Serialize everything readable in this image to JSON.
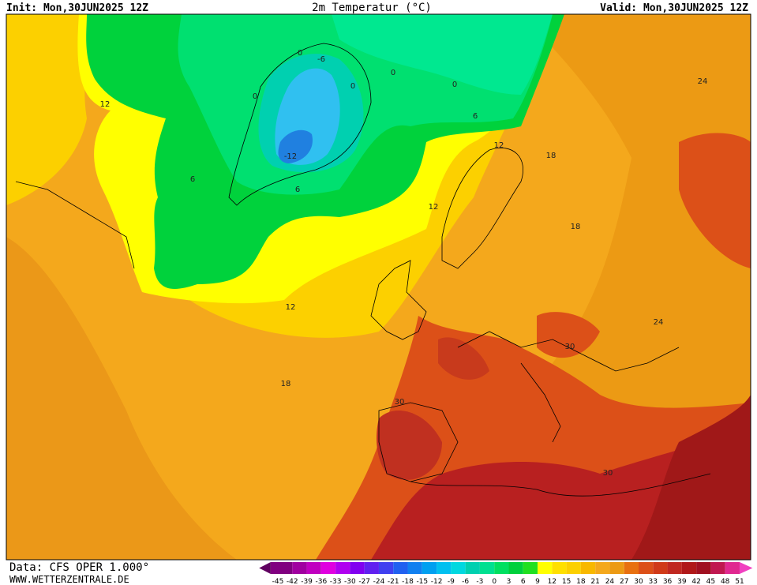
{
  "header": {
    "init": "Init: Mon,30JUN2025 12Z",
    "title": "2m Temperatur (°C)",
    "valid": "Valid: Mon,30JUN2025 12Z"
  },
  "map": {
    "contour_labels": [
      -6,
      0,
      0,
      0,
      0,
      0,
      6,
      12,
      -12,
      6,
      6,
      12,
      12,
      18,
      24,
      18,
      12,
      18,
      24,
      30,
      30,
      30
    ]
  },
  "colorbar": {
    "labels": [
      -45,
      -42,
      -39,
      -36,
      -33,
      -30,
      -27,
      -24,
      -21,
      -18,
      -15,
      -12,
      -9,
      -6,
      -3,
      0,
      3,
      6,
      9,
      12,
      15,
      18,
      21,
      24,
      27,
      30,
      33,
      36,
      39,
      42,
      45,
      48,
      51
    ]
  },
  "footer": {
    "source": "Data: CFS OPER 1.000°",
    "website": "WWW.WETTERZENTRALE.DE"
  }
}
